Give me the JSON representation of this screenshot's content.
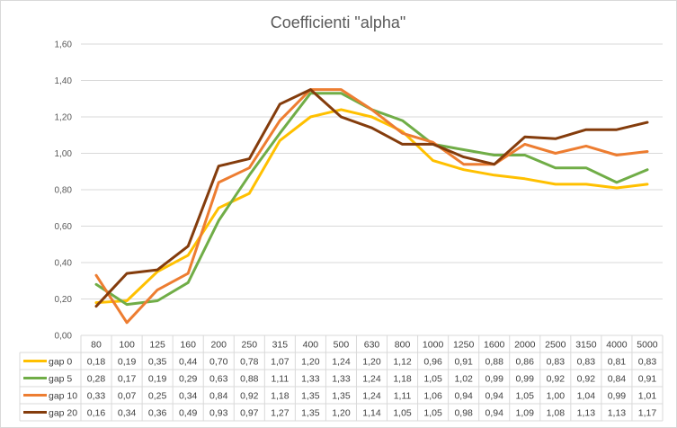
{
  "chart_data": {
    "type": "line",
    "title": "Coefficienti \"alpha\"",
    "xlabel": "",
    "ylabel": "",
    "ylim": [
      0,
      1.6
    ],
    "y_ticks": [
      "0,00",
      "0,20",
      "0,40",
      "0,60",
      "0,80",
      "1,00",
      "1,20",
      "1,40",
      "1,60"
    ],
    "grid": true,
    "legend": "data-table",
    "categories": [
      "80",
      "100",
      "125",
      "160",
      "200",
      "250",
      "315",
      "400",
      "500",
      "630",
      "800",
      "1000",
      "1250",
      "1600",
      "2000",
      "2500",
      "3150",
      "4000",
      "5000"
    ],
    "series": [
      {
        "name": "gap 0",
        "color": "#ffc000",
        "values": [
          0.18,
          0.19,
          0.35,
          0.44,
          0.7,
          0.78,
          1.07,
          1.2,
          1.24,
          1.2,
          1.12,
          0.96,
          0.91,
          0.88,
          0.86,
          0.83,
          0.83,
          0.81,
          0.83
        ],
        "labels": [
          "0,18",
          "0,19",
          "0,35",
          "0,44",
          "0,70",
          "0,78",
          "1,07",
          "1,20",
          "1,24",
          "1,20",
          "1,12",
          "0,96",
          "0,91",
          "0,88",
          "0,86",
          "0,83",
          "0,83",
          "0,81",
          "0,83"
        ]
      },
      {
        "name": "gap 5",
        "color": "#70ad47",
        "values": [
          0.28,
          0.17,
          0.19,
          0.29,
          0.63,
          0.88,
          1.11,
          1.33,
          1.33,
          1.24,
          1.18,
          1.05,
          1.02,
          0.99,
          0.99,
          0.92,
          0.92,
          0.84,
          0.91
        ],
        "labels": [
          "0,28",
          "0,17",
          "0,19",
          "0,29",
          "0,63",
          "0,88",
          "1,11",
          "1,33",
          "1,33",
          "1,24",
          "1,18",
          "1,05",
          "1,02",
          "0,99",
          "0,99",
          "0,92",
          "0,92",
          "0,84",
          "0,91"
        ]
      },
      {
        "name": "gap 10",
        "color": "#ed7d31",
        "values": [
          0.33,
          0.07,
          0.25,
          0.34,
          0.84,
          0.92,
          1.18,
          1.35,
          1.35,
          1.24,
          1.11,
          1.06,
          0.94,
          0.94,
          1.05,
          1.0,
          1.04,
          0.99,
          1.01
        ],
        "labels": [
          "0,33",
          "0,07",
          "0,25",
          "0,34",
          "0,84",
          "0,92",
          "1,18",
          "1,35",
          "1,35",
          "1,24",
          "1,11",
          "1,06",
          "0,94",
          "0,94",
          "1,05",
          "1,00",
          "1,04",
          "0,99",
          "1,01"
        ]
      },
      {
        "name": "gap 20",
        "color": "#843c0c",
        "values": [
          0.16,
          0.34,
          0.36,
          0.49,
          0.93,
          0.97,
          1.27,
          1.35,
          1.2,
          1.14,
          1.05,
          1.05,
          0.98,
          0.94,
          1.09,
          1.08,
          1.13,
          1.13,
          1.17
        ],
        "labels": [
          "0,16",
          "0,34",
          "0,36",
          "0,49",
          "0,93",
          "0,97",
          "1,27",
          "1,35",
          "1,20",
          "1,14",
          "1,05",
          "1,05",
          "0,98",
          "0,94",
          "1,09",
          "1,08",
          "1,13",
          "1,13",
          "1,17"
        ]
      }
    ]
  }
}
